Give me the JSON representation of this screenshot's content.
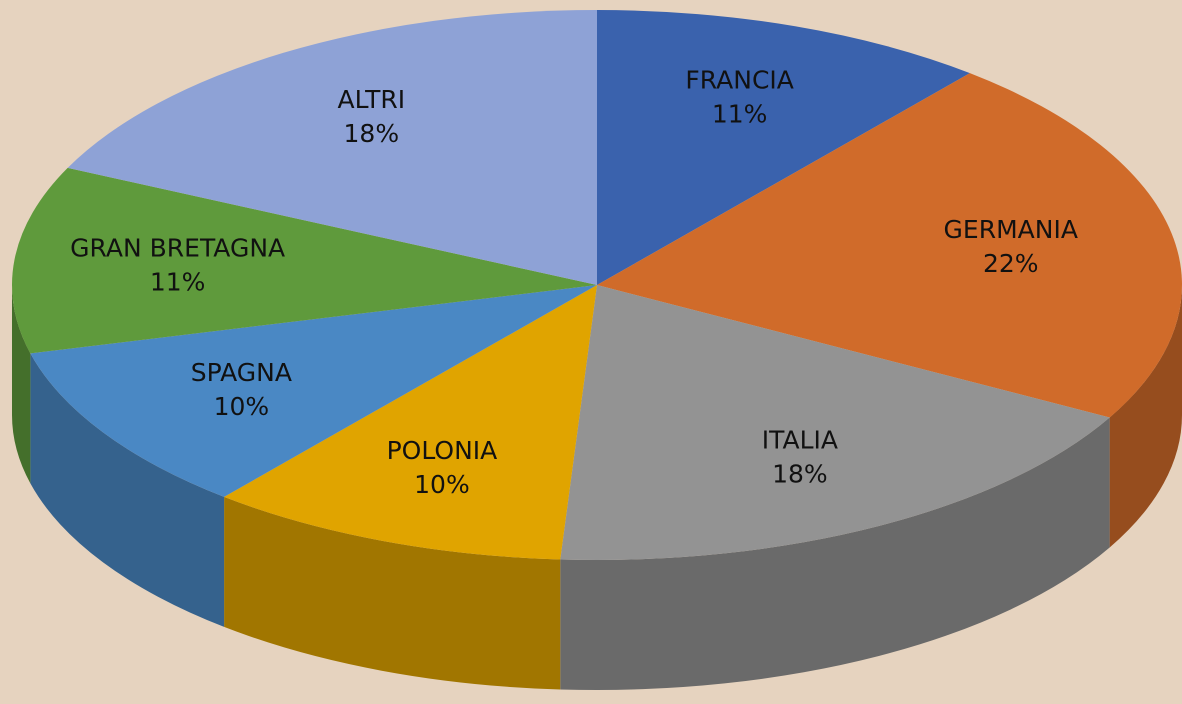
{
  "chart_data": {
    "type": "pie",
    "categories": [
      "FRANCIA",
      "GERMANIA",
      "ITALIA",
      "POLONIA",
      "SPAGNA",
      "GRAN BRETAGNA",
      "ALTRI"
    ],
    "values": [
      11,
      22,
      18,
      10,
      10,
      11,
      18
    ],
    "value_labels": [
      "11%",
      "22%",
      "18%",
      "10%",
      "10%",
      "11%",
      "18%"
    ],
    "colors": [
      "#3a62ad",
      "#d06b2a",
      "#939393",
      "#e0a400",
      "#4a88c4",
      "#5f9a3c",
      "#8ea2d6"
    ]
  }
}
